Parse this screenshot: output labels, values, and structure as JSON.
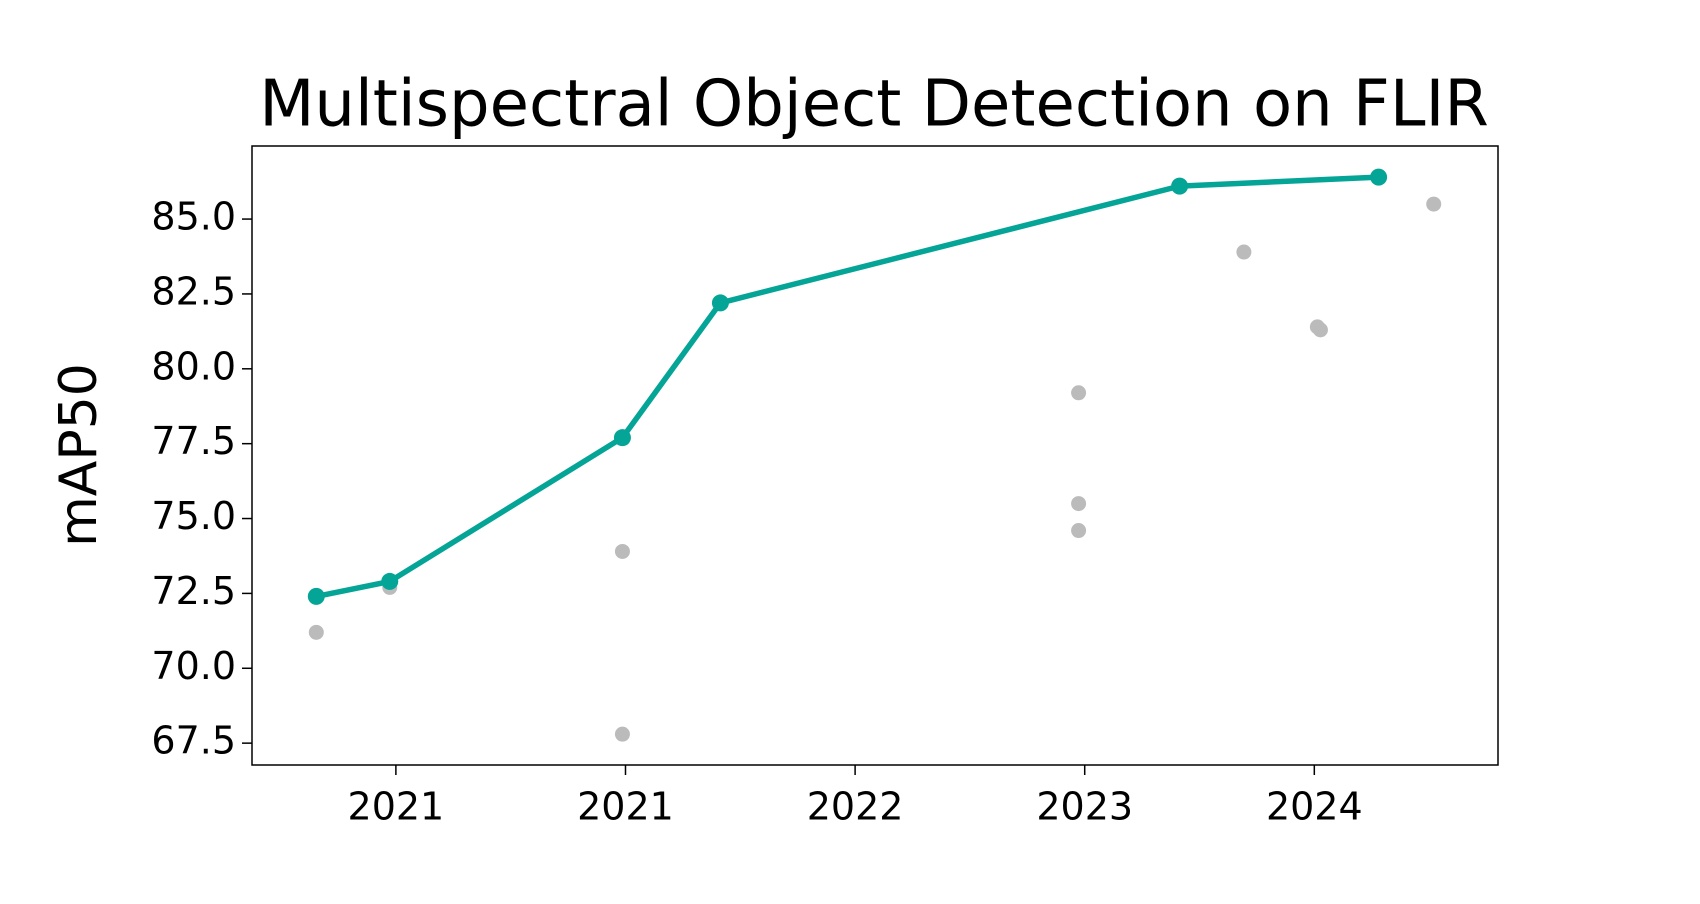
{
  "chart_data": {
    "type": "line",
    "title": "Multispectral Object Detection on FLIR",
    "y_label": "mAP50",
    "xlim": [
      2020.53,
      2024.6
    ],
    "xticks": [
      {
        "value": 2021.0,
        "label": "2021"
      },
      {
        "value": 2021.75,
        "label": "2021"
      },
      {
        "value": 2022.5,
        "label": "2022"
      },
      {
        "value": 2023.25,
        "label": "2023"
      },
      {
        "value": 2024.0,
        "label": "2024"
      }
    ],
    "ylim": [
      66.77,
      87.44
    ],
    "yticks": [
      {
        "value": 67.5,
        "label": "67.5"
      },
      {
        "value": 70.0,
        "label": "70.0"
      },
      {
        "value": 72.5,
        "label": "72.5"
      },
      {
        "value": 75.0,
        "label": "75.0"
      },
      {
        "value": 77.5,
        "label": "77.5"
      },
      {
        "value": 80.0,
        "label": "80.0"
      },
      {
        "value": 82.5,
        "label": "82.5"
      },
      {
        "value": 85.0,
        "label": "85.0"
      }
    ],
    "grid": false,
    "series": [
      {
        "color": "#bbbbbb",
        "mode": "markers",
        "x": [
          2020.74,
          2020.98,
          2021.74,
          2021.74,
          2023.23,
          2023.23,
          2023.23,
          2023.77,
          2024.01,
          2024.02,
          2024.39
        ],
        "values": [
          71.2,
          72.7,
          73.9,
          67.8,
          79.2,
          75.5,
          74.6,
          83.9,
          81.4,
          81.3,
          85.5
        ]
      },
      {
        "color": "#04a497",
        "mode": "line+markers",
        "x": [
          2020.74,
          2020.98,
          2021.74,
          2022.06,
          2023.56,
          2024.21
        ],
        "values": [
          72.4,
          72.9,
          77.7,
          82.2,
          86.1,
          86.4
        ]
      }
    ]
  }
}
